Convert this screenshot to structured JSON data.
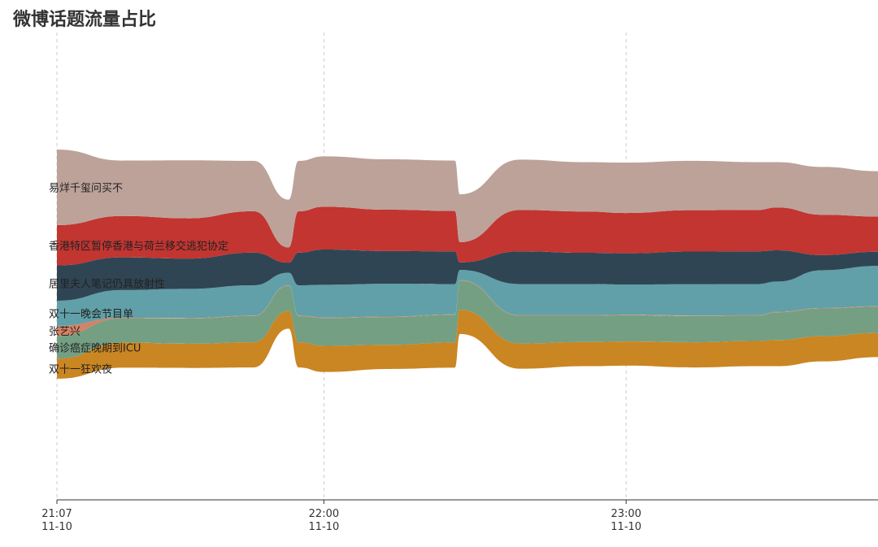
{
  "chart_data": {
    "type": "area",
    "variant": "streamgraph",
    "title": "微博话题流量占比",
    "xlabel": "",
    "ylabel": "",
    "grid": "vertical-dashed",
    "legend": "none (labels at stream start)",
    "x": [
      "11-10 21:07",
      "11-10 21:20",
      "11-10 21:33",
      "11-10 21:46",
      "11-10 21:53",
      "11-10 21:55",
      "11-10 22:00",
      "11-10 22:13",
      "11-10 22:26",
      "11-10 22:27",
      "11-10 22:39",
      "11-10 22:52",
      "11-10 23:00",
      "11-10 23:13",
      "11-10 23:26",
      "11-10 23:30",
      "11-10 23:39",
      "11-10 23:50"
    ],
    "xticks": [
      {
        "x": "11-10 21:07",
        "time": "21:07",
        "date": "11-10"
      },
      {
        "x": "11-10 22:00",
        "time": "22:00",
        "date": "11-10"
      },
      {
        "x": "11-10 23:00",
        "time": "23:00",
        "date": "11-10"
      }
    ],
    "series": [
      {
        "name": "双十一狂欢夜",
        "color": "#ca8622",
        "values": [
          40,
          50,
          48,
          50,
          35,
          50,
          52,
          48,
          50,
          48,
          50,
          48,
          48,
          50,
          50,
          52,
          50,
          48
        ]
      },
      {
        "name": "确诊癌症晚期到ICU",
        "color": "#749f83",
        "values": [
          45,
          48,
          50,
          52,
          50,
          52,
          55,
          55,
          55,
          58,
          55,
          52,
          52,
          52,
          50,
          55,
          55,
          52
        ]
      },
      {
        "name": "张艺兴",
        "color": "#d48265",
        "values": [
          20,
          1,
          1,
          1,
          1,
          1,
          1,
          1,
          1,
          1,
          1,
          1,
          1,
          1,
          1,
          1,
          1,
          1
        ]
      },
      {
        "name": "双十一晚会节目单",
        "color": "#61a0a8",
        "values": [
          50,
          55,
          58,
          60,
          25,
          60,
          65,
          65,
          60,
          20,
          62,
          62,
          60,
          62,
          62,
          60,
          75,
          80
        ]
      },
      {
        "name": "居里夫人笔记仍具放射性",
        "color": "#2f4554",
        "values": [
          70,
          65,
          60,
          65,
          20,
          65,
          70,
          65,
          65,
          15,
          65,
          62,
          62,
          65,
          65,
          62,
          30,
          28
        ]
      },
      {
        "name": "香港特区暂停香港与荷兰移交逃犯协定",
        "color": "#c23531",
        "values": [
          80,
          82,
          80,
          82,
          30,
          82,
          85,
          82,
          80,
          40,
          82,
          82,
          80,
          82,
          82,
          85,
          80,
          70
        ]
      },
      {
        "name": "易烊千玺问买不",
        "color": "#bda29a",
        "values": [
          150,
          110,
          115,
          100,
          95,
          100,
          100,
          100,
          100,
          95,
          100,
          98,
          100,
          98,
          95,
          90,
          95,
          90
        ]
      }
    ]
  }
}
